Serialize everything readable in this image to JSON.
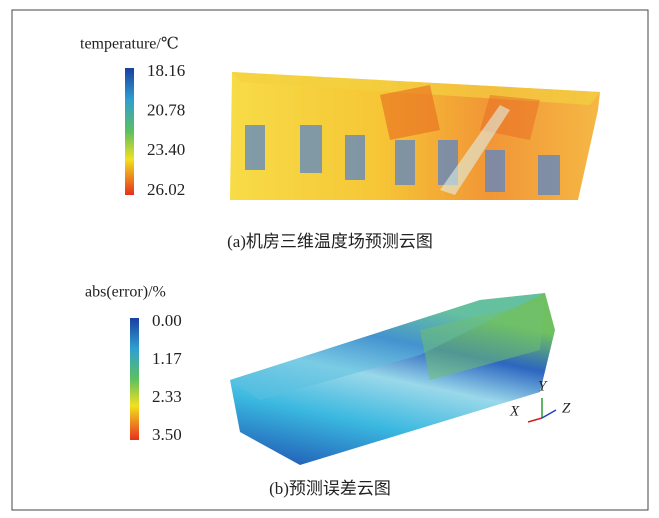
{
  "panels": [
    {
      "colorbar_title": "temperature/℃",
      "ticks": [
        "18.16",
        "20.78",
        "23.40",
        "26.02"
      ],
      "caption": "(a)机房三维温度场预测云图"
    },
    {
      "colorbar_title": "abs(error)/%",
      "ticks": [
        "0.00",
        "1.17",
        "2.33",
        "3.50"
      ],
      "caption": "(b)预测误差云图"
    }
  ],
  "axes": {
    "x": "X",
    "y": "Y",
    "z": "Z"
  }
}
